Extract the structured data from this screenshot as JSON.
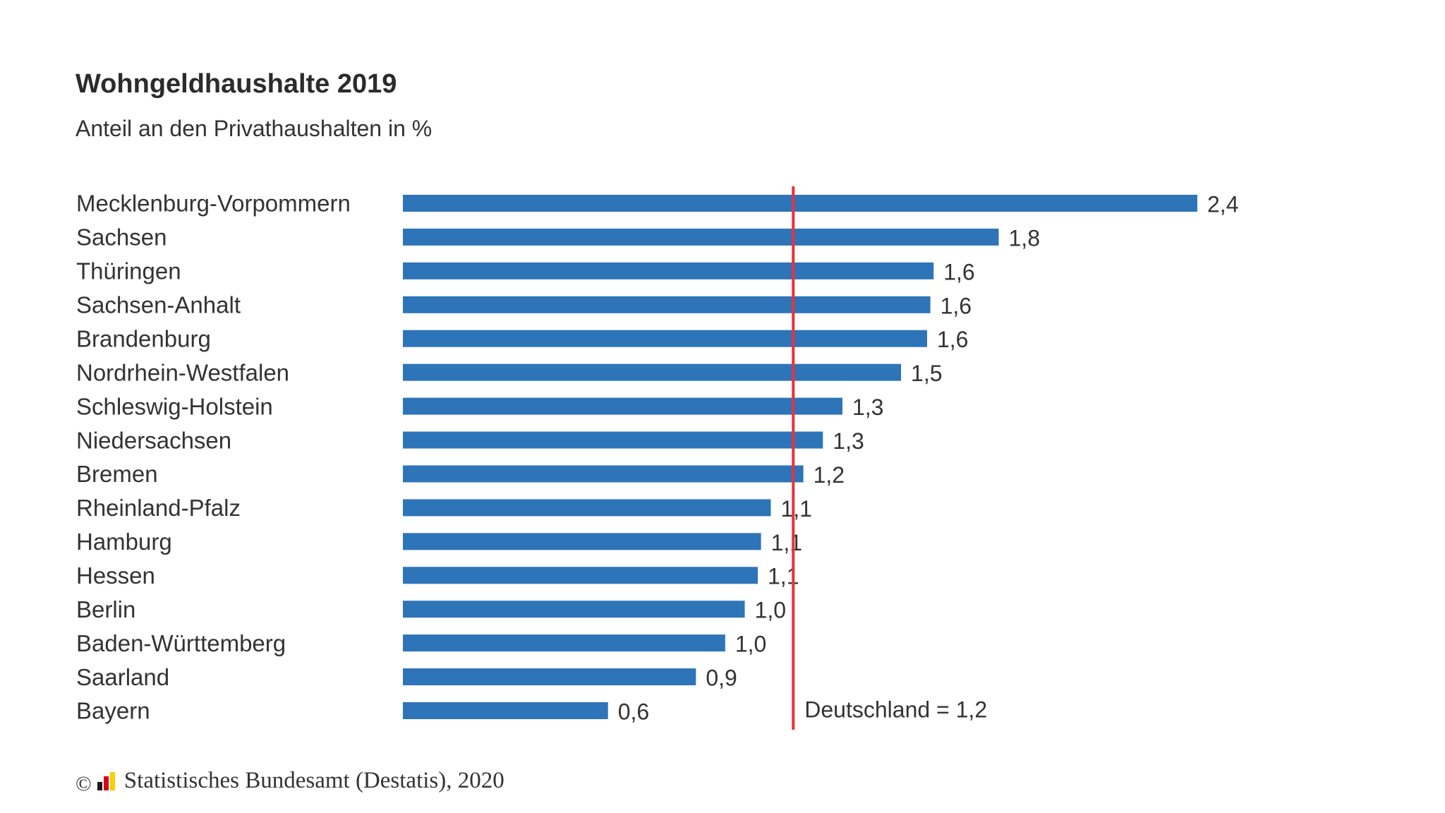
{
  "header": {
    "title": "Wohngeldhaushalte 2019",
    "subtitle": "Anteil an den Privathaushalten in %"
  },
  "chart_data": {
    "type": "bar",
    "orientation": "horizontal",
    "title": "Wohngeldhaushalte 2019",
    "subtitle": "Anteil an den Privathaushalten in %",
    "categories": [
      "Mecklenburg-Vorpommern",
      "Sachsen",
      "Thüringen",
      "Sachsen-Anhalt",
      "Brandenburg",
      "Nordrhein-Westfalen",
      "Schleswig-Holstein",
      "Niedersachsen",
      "Bremen",
      "Rheinland-Pfalz",
      "Hamburg",
      "Hessen",
      "Berlin",
      "Baden-Württemberg",
      "Saarland",
      "Bayern"
    ],
    "values": [
      2.44,
      1.83,
      1.63,
      1.62,
      1.61,
      1.53,
      1.35,
      1.29,
      1.23,
      1.13,
      1.1,
      1.09,
      1.05,
      0.99,
      0.9,
      0.63
    ],
    "value_labels": [
      "2,4",
      "1,8",
      "1,6",
      "1,6",
      "1,6",
      "1,5",
      "1,3",
      "1,3",
      "1,2",
      "1,1",
      "1,1",
      "1,1",
      "1,0",
      "1,0",
      "0,9",
      "0,6"
    ],
    "xlim": [
      0,
      2.44
    ],
    "bar_color": "#2e74b8",
    "reference_line": {
      "value": 1.2,
      "label": "Deutschland = 1,2",
      "color": "#e8323c"
    },
    "grid": false,
    "legend": "none"
  },
  "footer": {
    "copyright_symbol": "©",
    "source": "Statistisches Bundesamt (Destatis), 2020",
    "logo_colors": [
      "#1a1a1a",
      "#d6001c",
      "#ffcc00"
    ]
  }
}
